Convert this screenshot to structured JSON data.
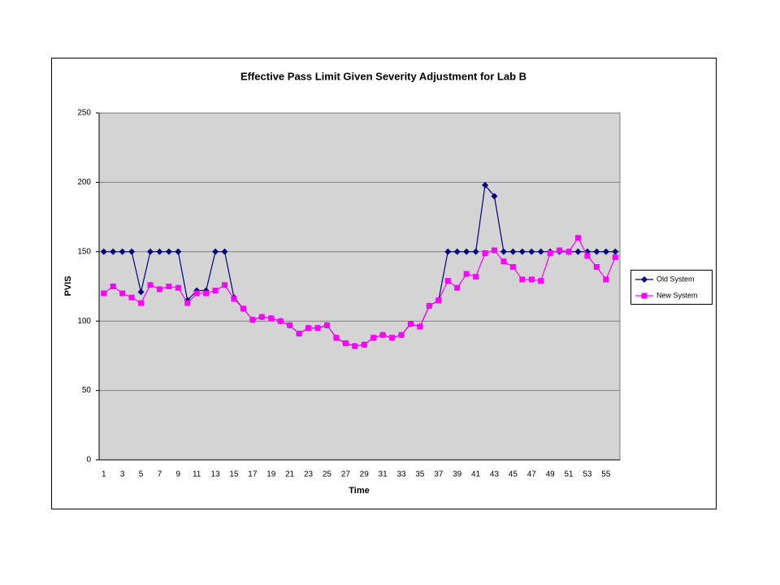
{
  "chart_data": {
    "type": "line",
    "title": "Effective Pass Limit Given Severity Adjustment for Lab B",
    "x_label": "Time",
    "y_label": "PVIS",
    "categories": [
      1,
      null,
      3,
      null,
      5,
      null,
      7,
      null,
      9,
      null,
      11,
      null,
      13,
      null,
      15,
      null,
      17,
      null,
      19,
      null,
      21,
      null,
      23,
      null,
      25,
      null,
      27,
      null,
      29,
      null,
      31,
      null,
      33,
      null,
      35,
      null,
      37,
      null,
      39,
      null,
      41,
      null,
      43,
      null,
      45,
      null,
      47,
      null,
      49,
      null,
      51,
      null,
      53,
      null,
      55,
      null
    ],
    "series": [
      {
        "name": "Old System",
        "color": "#000080",
        "marker": "diamond",
        "values": [
          150,
          150,
          150,
          150,
          121,
          150,
          150,
          150,
          150,
          115,
          122,
          122,
          150,
          150,
          117,
          109,
          101,
          103,
          102,
          100,
          97,
          91,
          95,
          95,
          97,
          88,
          84,
          82,
          83,
          88,
          90,
          88,
          90,
          98,
          96,
          111,
          115,
          150,
          150,
          150,
          150,
          198,
          190,
          150,
          150,
          150,
          150,
          150,
          150,
          150,
          150,
          150,
          150,
          150,
          150,
          150
        ]
      },
      {
        "name": "New System",
        "color": "#ff00ff",
        "marker": "square",
        "values": [
          120,
          125,
          120,
          117,
          113,
          126,
          123,
          125,
          124,
          113,
          120,
          120,
          122,
          126,
          116,
          109,
          101,
          103,
          102,
          100,
          97,
          91,
          95,
          95,
          97,
          88,
          84,
          82,
          83,
          88,
          90,
          88,
          90,
          98,
          96,
          111,
          115,
          129,
          124,
          134,
          132,
          149,
          151,
          143,
          139,
          130,
          130,
          129,
          149,
          151,
          150,
          160,
          147,
          139,
          130,
          146
        ]
      }
    ],
    "ylim": [
      0,
      250
    ],
    "yticks": [
      0,
      50,
      100,
      150,
      200,
      250
    ],
    "grid": true,
    "legend": "right"
  }
}
